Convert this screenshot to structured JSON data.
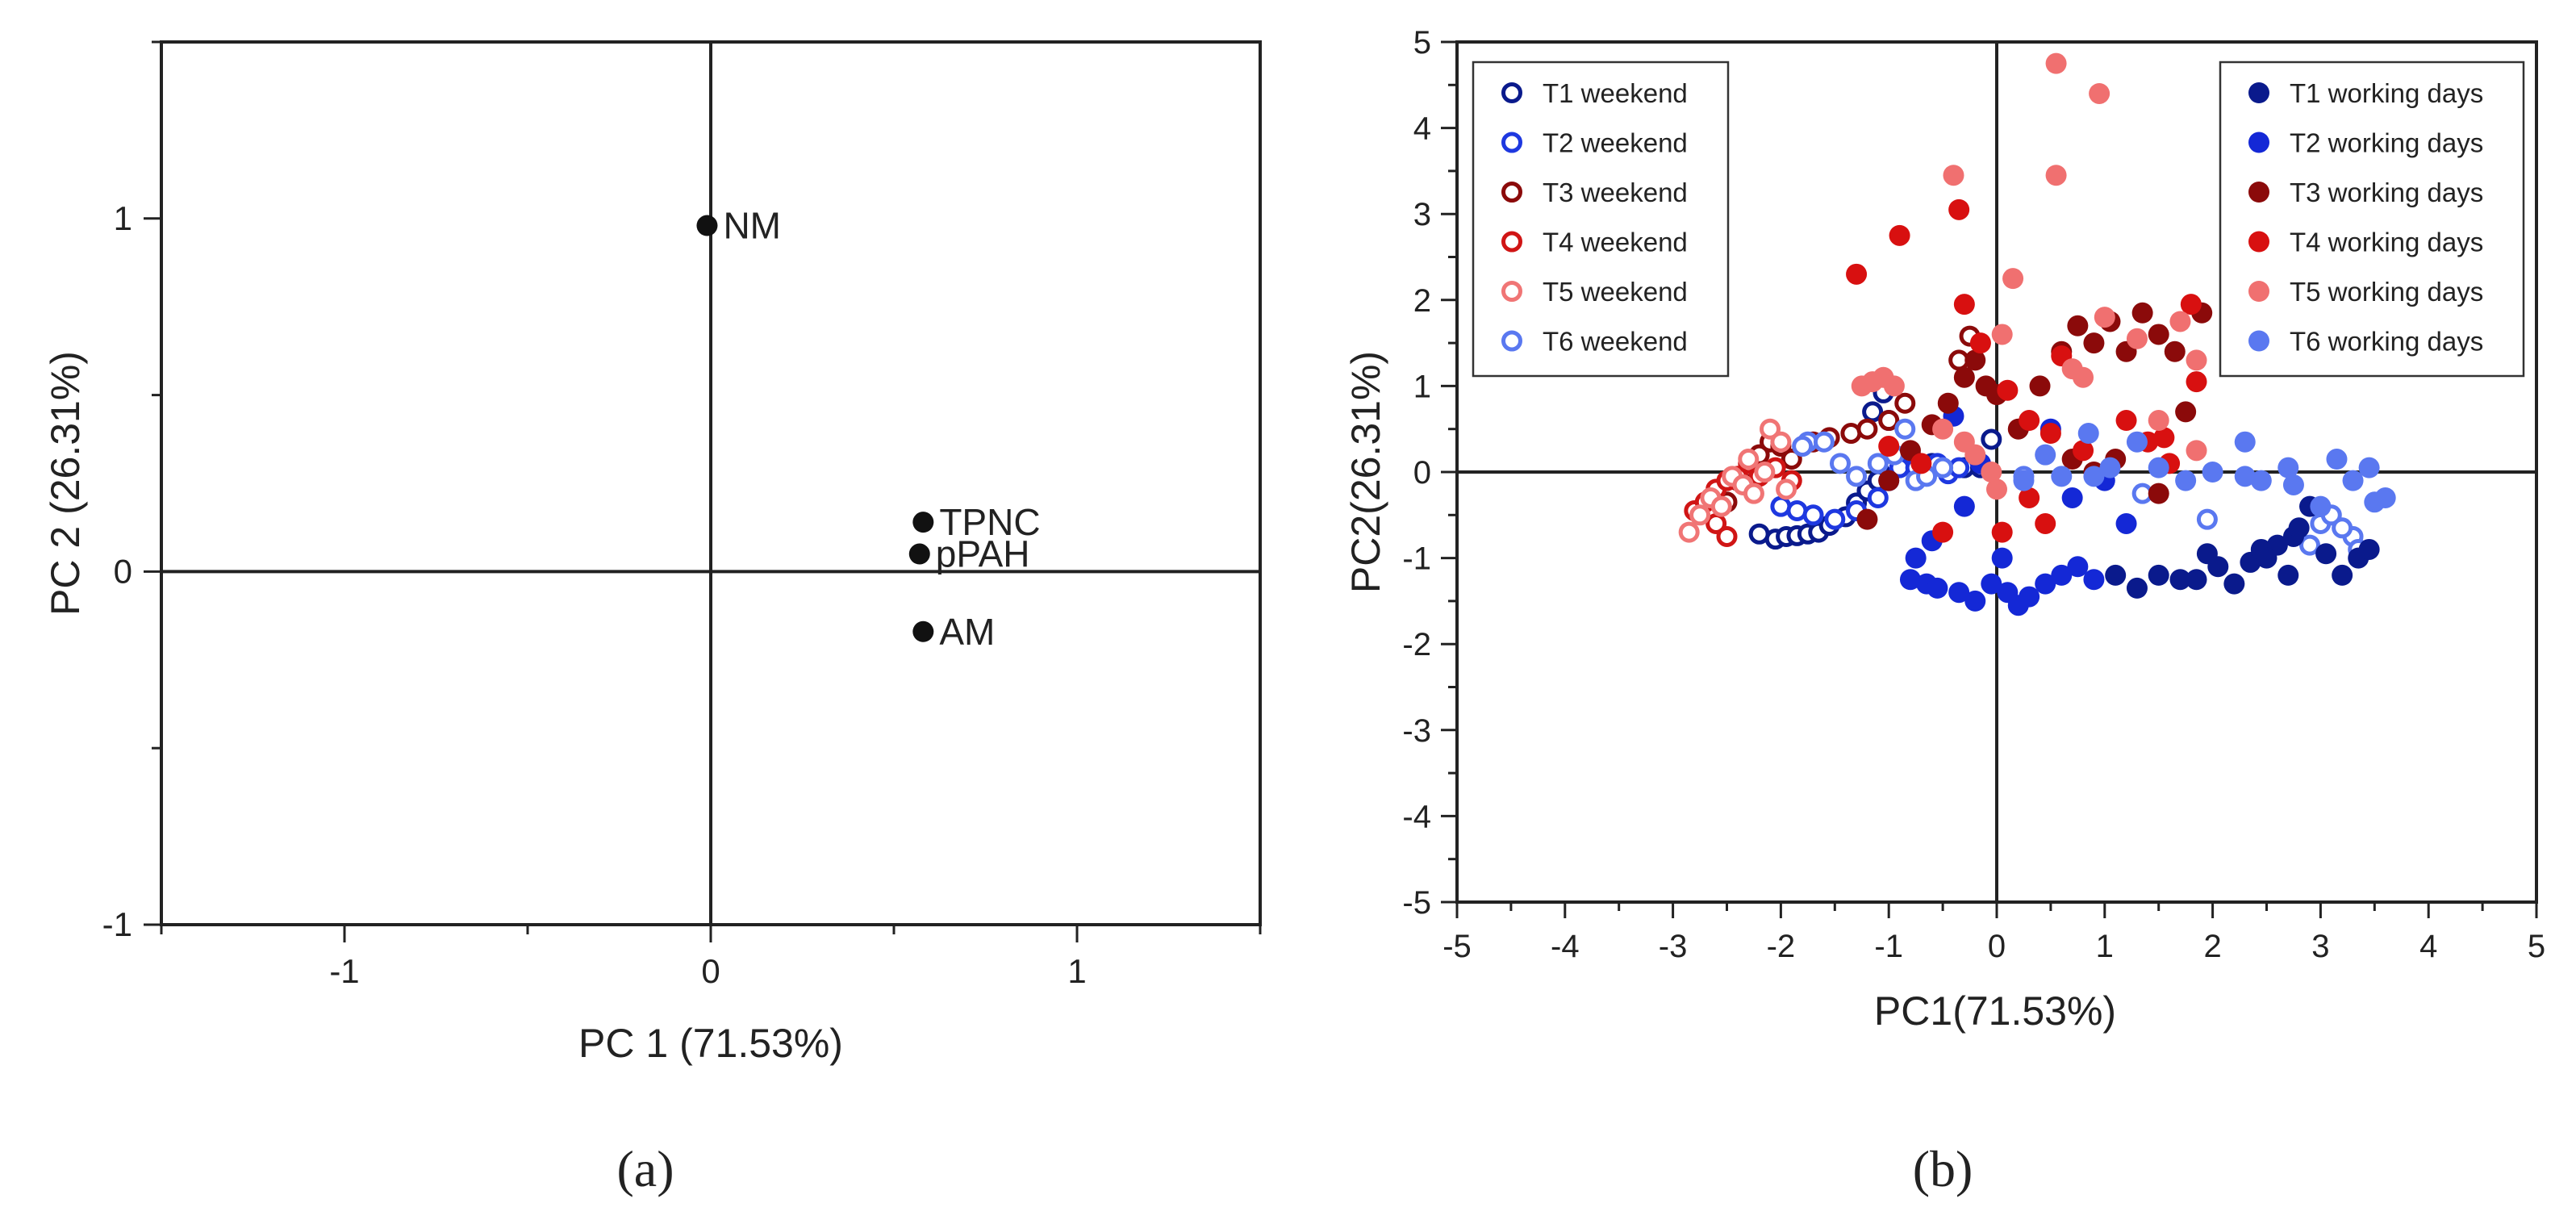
{
  "figure": {
    "panel_labels": [
      "(a)",
      "(b)"
    ]
  },
  "chart_data": [
    {
      "type": "scatter",
      "panel": "(a)",
      "title": "",
      "xlabel": "PC 1 (71.53%)",
      "ylabel": "PC 2 (26.31%)",
      "xlim": [
        -1.5,
        1.5
      ],
      "ylim": [
        -1,
        1.5
      ],
      "xticks": [
        -1,
        0,
        1
      ],
      "yticks": [
        -1,
        0,
        1
      ],
      "grid": false,
      "reference_lines": {
        "x": 0,
        "y": 0
      },
      "points": [
        {
          "label": "NM",
          "x": -0.01,
          "y": 0.98
        },
        {
          "label": "TPNC",
          "x": 0.58,
          "y": 0.14
        },
        {
          "label": "pPAH",
          "x": 0.57,
          "y": 0.05
        },
        {
          "label": "AM",
          "x": 0.58,
          "y": -0.17
        }
      ]
    },
    {
      "type": "scatter",
      "panel": "(b)",
      "title": "",
      "xlabel": "PC1(71.53%)",
      "ylabel": "PC2(26.31%)",
      "xlim": [
        -5,
        5
      ],
      "ylim": [
        -5,
        5
      ],
      "xticks": [
        -5,
        -4,
        -3,
        -2,
        -1,
        0,
        1,
        2,
        3,
        4,
        5
      ],
      "yticks": [
        -5,
        -4,
        -3,
        -2,
        -1,
        0,
        1,
        2,
        3,
        4,
        5
      ],
      "grid": false,
      "reference_lines": {
        "x": 0,
        "y": 0
      },
      "legend_left_placement": "top-left",
      "legend_right_placement": "top-right",
      "series": [
        {
          "name": "T1 weekend",
          "color": "#0a1a8c",
          "filled": false,
          "legend": "left",
          "points": [
            [
              -2.2,
              -0.72
            ],
            [
              -2.05,
              -0.78
            ],
            [
              -1.95,
              -0.75
            ],
            [
              -1.85,
              -0.74
            ],
            [
              -1.75,
              -0.72
            ],
            [
              -1.65,
              -0.7
            ],
            [
              -1.55,
              -0.62
            ],
            [
              -1.4,
              -0.52
            ],
            [
              -1.3,
              -0.36
            ],
            [
              -1.2,
              -0.22
            ],
            [
              -1.1,
              -0.1
            ],
            [
              -0.95,
              0.1
            ],
            [
              -0.8,
              0.2
            ],
            [
              -0.6,
              0.1
            ],
            [
              -0.3,
              0.05
            ],
            [
              -0.15,
              0.05
            ],
            [
              -0.05,
              0.38
            ],
            [
              -1.05,
              0.92
            ],
            [
              -1.15,
              0.7
            ]
          ]
        },
        {
          "name": "T2 weekend",
          "color": "#1e38e0",
          "filled": false,
          "legend": "left",
          "points": [
            [
              -2.0,
              -0.4
            ],
            [
              -1.85,
              -0.45
            ],
            [
              -1.7,
              -0.5
            ],
            [
              -1.5,
              -0.55
            ],
            [
              -1.3,
              -0.45
            ],
            [
              -1.1,
              -0.3
            ],
            [
              -1.0,
              -0.1
            ],
            [
              -0.9,
              0.05
            ],
            [
              -0.75,
              0.05
            ],
            [
              -0.55,
              0.1
            ],
            [
              -0.45,
              -0.02
            ],
            [
              -0.35,
              0.05
            ],
            [
              -1.0,
              0.6
            ]
          ]
        },
        {
          "name": "T3 weekend",
          "color": "#8b0a0a",
          "filled": false,
          "legend": "left",
          "points": [
            [
              -2.5,
              -0.35
            ],
            [
              -2.4,
              -0.1
            ],
            [
              -2.3,
              0.05
            ],
            [
              -2.2,
              0.2
            ],
            [
              -2.1,
              0.35
            ],
            [
              -2.0,
              0.3
            ],
            [
              -1.9,
              0.15
            ],
            [
              -1.7,
              0.35
            ],
            [
              -1.55,
              0.4
            ],
            [
              -1.35,
              0.45
            ],
            [
              -1.2,
              0.5
            ],
            [
              -1.0,
              0.6
            ],
            [
              -0.85,
              0.8
            ],
            [
              -0.35,
              1.3
            ],
            [
              -0.25,
              1.58
            ]
          ]
        },
        {
          "name": "T4 weekend",
          "color": "#d01515",
          "filled": false,
          "legend": "left",
          "points": [
            [
              -2.8,
              -0.45
            ],
            [
              -2.7,
              -0.35
            ],
            [
              -2.6,
              -0.2
            ],
            [
              -2.5,
              -0.1
            ],
            [
              -2.4,
              -0.05
            ],
            [
              -2.3,
              0.1
            ],
            [
              -2.2,
              -0.05
            ],
            [
              -2.05,
              0.05
            ],
            [
              -1.9,
              -0.1
            ],
            [
              -2.6,
              -0.6
            ],
            [
              -2.5,
              -0.75
            ]
          ]
        },
        {
          "name": "T5 weekend",
          "color": "#f07575",
          "filled": false,
          "legend": "left",
          "points": [
            [
              -2.85,
              -0.7
            ],
            [
              -2.75,
              -0.5
            ],
            [
              -2.65,
              -0.3
            ],
            [
              -2.55,
              -0.4
            ],
            [
              -2.45,
              -0.05
            ],
            [
              -2.35,
              -0.15
            ],
            [
              -2.25,
              -0.25
            ],
            [
              -2.15,
              0.0
            ],
            [
              -2.1,
              0.5
            ],
            [
              -2.0,
              0.35
            ],
            [
              -1.95,
              -0.2
            ],
            [
              -2.3,
              0.15
            ]
          ]
        },
        {
          "name": "T6 weekend",
          "color": "#5a78f0",
          "filled": false,
          "legend": "left",
          "points": [
            [
              -1.75,
              0.35
            ],
            [
              -1.6,
              0.35
            ],
            [
              -1.45,
              0.1
            ],
            [
              -1.3,
              -0.05
            ],
            [
              -1.1,
              0.1
            ],
            [
              -0.95,
              0.2
            ],
            [
              -0.85,
              0.5
            ],
            [
              -0.75,
              -0.1
            ],
            [
              -0.65,
              -0.05
            ],
            [
              -0.5,
              0.05
            ],
            [
              -1.8,
              0.3
            ],
            [
              0.25,
              -0.05
            ],
            [
              1.35,
              -0.25
            ],
            [
              1.95,
              -0.55
            ],
            [
              2.9,
              -0.85
            ],
            [
              3.0,
              -0.6
            ],
            [
              3.1,
              -0.5
            ],
            [
              3.3,
              -0.75
            ],
            [
              3.35,
              -0.9
            ],
            [
              3.2,
              -0.65
            ]
          ]
        },
        {
          "name": "T1 working days",
          "color": "#0a1a8c",
          "filled": true,
          "legend": "right",
          "points": [
            [
              1.3,
              -1.35
            ],
            [
              1.5,
              -1.2
            ],
            [
              1.7,
              -1.25
            ],
            [
              1.85,
              -1.25
            ],
            [
              1.95,
              -0.95
            ],
            [
              2.05,
              -1.1
            ],
            [
              2.2,
              -1.3
            ],
            [
              2.35,
              -1.05
            ],
            [
              2.45,
              -0.9
            ],
            [
              2.6,
              -0.85
            ],
            [
              2.75,
              -0.75
            ],
            [
              2.8,
              -0.65
            ],
            [
              2.9,
              -0.4
            ],
            [
              3.05,
              -0.95
            ],
            [
              3.2,
              -1.2
            ],
            [
              3.35,
              -1.0
            ],
            [
              3.45,
              -0.9
            ],
            [
              2.5,
              -1.0
            ],
            [
              2.7,
              -1.2
            ],
            [
              1.1,
              -1.2
            ]
          ]
        },
        {
          "name": "T2 working days",
          "color": "#1428d6",
          "filled": true,
          "legend": "right",
          "points": [
            [
              -0.8,
              -1.25
            ],
            [
              -0.65,
              -1.3
            ],
            [
              -0.55,
              -1.35
            ],
            [
              -0.35,
              -1.4
            ],
            [
              -0.2,
              -1.5
            ],
            [
              -0.05,
              -1.3
            ],
            [
              0.1,
              -1.4
            ],
            [
              0.2,
              -1.55
            ],
            [
              0.3,
              -1.45
            ],
            [
              0.45,
              -1.3
            ],
            [
              0.6,
              -1.2
            ],
            [
              0.75,
              -1.1
            ],
            [
              0.9,
              -1.25
            ],
            [
              -0.75,
              -1.0
            ],
            [
              -0.3,
              -0.4
            ],
            [
              0.05,
              -1.0
            ],
            [
              -0.6,
              -0.8
            ],
            [
              0.7,
              -0.3
            ],
            [
              1.0,
              -0.1
            ],
            [
              1.2,
              -0.6
            ],
            [
              -0.15,
              0.1
            ],
            [
              -0.4,
              0.65
            ],
            [
              0.5,
              0.5
            ]
          ]
        },
        {
          "name": "T3 working days",
          "color": "#8b0a0a",
          "filled": true,
          "legend": "right",
          "points": [
            [
              -1.2,
              -0.55
            ],
            [
              -1.0,
              -0.1
            ],
            [
              -0.8,
              0.25
            ],
            [
              -0.6,
              0.55
            ],
            [
              -0.45,
              0.8
            ],
            [
              -0.3,
              1.1
            ],
            [
              -0.2,
              1.3
            ],
            [
              -0.1,
              1.0
            ],
            [
              0.0,
              0.9
            ],
            [
              0.2,
              0.5
            ],
            [
              0.4,
              1.0
            ],
            [
              0.6,
              1.4
            ],
            [
              0.75,
              1.7
            ],
            [
              0.9,
              1.5
            ],
            [
              1.05,
              1.75
            ],
            [
              1.2,
              1.4
            ],
            [
              1.35,
              1.85
            ],
            [
              1.5,
              1.6
            ],
            [
              1.65,
              1.4
            ],
            [
              1.75,
              0.7
            ],
            [
              1.9,
              1.85
            ],
            [
              1.5,
              -0.25
            ],
            [
              1.1,
              0.15
            ],
            [
              0.9,
              0.0
            ],
            [
              0.7,
              0.15
            ]
          ]
        },
        {
          "name": "T4 working days",
          "color": "#d81010",
          "filled": true,
          "legend": "right",
          "points": [
            [
              -1.0,
              0.3
            ],
            [
              -0.7,
              0.1
            ],
            [
              -0.5,
              -0.7
            ],
            [
              -0.3,
              1.95
            ],
            [
              -0.15,
              1.5
            ],
            [
              0.1,
              0.95
            ],
            [
              0.3,
              0.6
            ],
            [
              0.5,
              0.45
            ],
            [
              0.6,
              1.35
            ],
            [
              0.8,
              0.25
            ],
            [
              1.2,
              0.6
            ],
            [
              1.4,
              0.35
            ],
            [
              1.55,
              0.4
            ],
            [
              1.6,
              0.1
            ],
            [
              1.8,
              1.95
            ],
            [
              -1.3,
              2.3
            ],
            [
              -0.9,
              2.75
            ],
            [
              -0.35,
              3.05
            ],
            [
              0.05,
              -0.7
            ],
            [
              0.45,
              -0.6
            ],
            [
              0.3,
              -0.3
            ],
            [
              1.85,
              1.05
            ]
          ]
        },
        {
          "name": "T5 working days",
          "color": "#f07070",
          "filled": true,
          "legend": "right",
          "points": [
            [
              -1.15,
              1.05
            ],
            [
              -1.05,
              1.1
            ],
            [
              -0.95,
              1.0
            ],
            [
              -1.25,
              1.0
            ],
            [
              -0.5,
              0.5
            ],
            [
              -0.3,
              0.35
            ],
            [
              -0.2,
              0.2
            ],
            [
              -0.05,
              0.0
            ],
            [
              0.05,
              1.6
            ],
            [
              0.15,
              2.25
            ],
            [
              0.55,
              3.45
            ],
            [
              0.55,
              4.75
            ],
            [
              0.95,
              4.4
            ],
            [
              0.7,
              1.2
            ],
            [
              0.8,
              1.1
            ],
            [
              1.0,
              1.8
            ],
            [
              1.3,
              1.55
            ],
            [
              1.5,
              0.6
            ],
            [
              1.7,
              1.75
            ],
            [
              1.85,
              1.3
            ],
            [
              1.85,
              0.25
            ],
            [
              -0.4,
              3.45
            ],
            [
              0.0,
              -0.2
            ]
          ]
        },
        {
          "name": "T6 working days",
          "color": "#5a78f0",
          "filled": true,
          "legend": "right",
          "points": [
            [
              0.25,
              -0.1
            ],
            [
              0.45,
              0.2
            ],
            [
              0.6,
              -0.05
            ],
            [
              0.85,
              0.45
            ],
            [
              1.05,
              0.05
            ],
            [
              1.3,
              0.35
            ],
            [
              1.5,
              0.05
            ],
            [
              1.75,
              -0.1
            ],
            [
              2.0,
              0.0
            ],
            [
              2.3,
              0.35
            ],
            [
              2.3,
              -0.05
            ],
            [
              2.45,
              -0.1
            ],
            [
              2.7,
              0.05
            ],
            [
              2.75,
              -0.15
            ],
            [
              3.0,
              -0.4
            ],
            [
              3.15,
              0.15
            ],
            [
              3.3,
              -0.1
            ],
            [
              3.45,
              0.05
            ],
            [
              3.5,
              -0.35
            ],
            [
              3.6,
              -0.3
            ],
            [
              0.9,
              -0.05
            ]
          ]
        }
      ]
    }
  ]
}
